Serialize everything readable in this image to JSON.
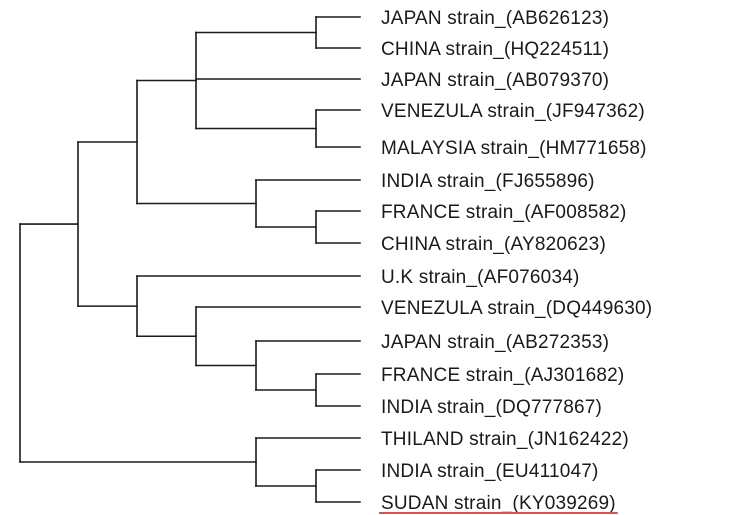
{
  "tree": {
    "leaves": [
      {
        "label": "JAPAN strain_(AB626123)",
        "highlighted": false
      },
      {
        "label": "CHINA strain_(HQ224511)",
        "highlighted": false
      },
      {
        "label": "JAPAN strain_(AB079370)",
        "highlighted": false
      },
      {
        "label": "VENEZULA strain_(JF947362)",
        "highlighted": false
      },
      {
        "label": "MALAYSIA strain_(HM771658)",
        "highlighted": false
      },
      {
        "label": "INDIA strain_(FJ655896)",
        "highlighted": false
      },
      {
        "label": "FRANCE strain_(AF008582)",
        "highlighted": false
      },
      {
        "label": "CHINA strain_(AY820623)",
        "highlighted": false
      },
      {
        "label": "U.K strain_(AF076034)",
        "highlighted": false
      },
      {
        "label": "VENEZULA strain_(DQ449630)",
        "highlighted": false
      },
      {
        "label": "JAPAN strain_(AB272353)",
        "highlighted": false
      },
      {
        "label": "FRANCE strain_(AJ301682)",
        "highlighted": false
      },
      {
        "label": "INDIA strain_(DQ777867)",
        "highlighted": false
      },
      {
        "label": "THILAND strain_(JN162422)",
        "highlighted": false
      },
      {
        "label": "INDIA strain_(EU411047)",
        "highlighted": false
      },
      {
        "label": "SUDAN strain_(KY039269)",
        "highlighted": true
      }
    ],
    "colors": {
      "branch": "#1a1a1a",
      "text": "#1a1a1a",
      "highlight_underline": "#d9534f",
      "background": "#ffffff"
    }
  }
}
